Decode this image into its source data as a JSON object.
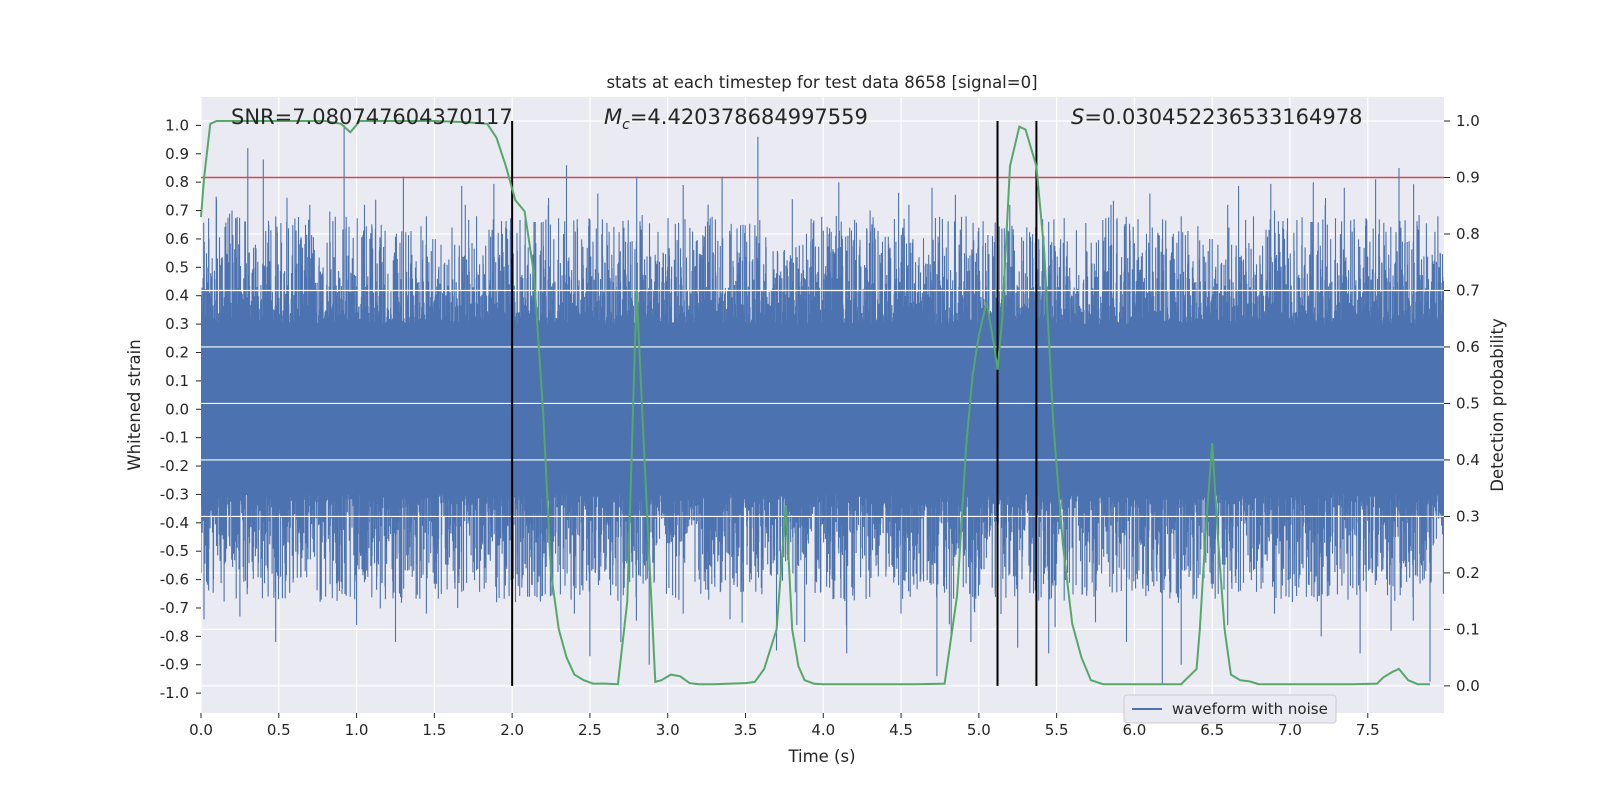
{
  "chart_data": {
    "type": "line",
    "title": "stats at each timestep for test data 8658 [signal=0]",
    "xlabel": "Time (s)",
    "ylabel": "Whitened strain",
    "y2label": "Detection probability",
    "xlim": [
      0.0,
      7.99
    ],
    "ylim": [
      -1.07,
      1.1
    ],
    "y2lim": [
      -0.048,
      1.0425
    ],
    "xticks": [
      "0.0",
      "0.5",
      "1.0",
      "1.5",
      "2.0",
      "2.5",
      "3.0",
      "3.5",
      "4.0",
      "4.5",
      "5.0",
      "5.5",
      "6.0",
      "6.5",
      "7.0",
      "7.5"
    ],
    "yticks": [
      "-1.0",
      "-0.9",
      "-0.8",
      "-0.7",
      "-0.6",
      "-0.5",
      "-0.4",
      "-0.3",
      "-0.2",
      "-0.1",
      "0.0",
      "0.1",
      "0.2",
      "0.3",
      "0.4",
      "0.5",
      "0.6",
      "0.7",
      "0.8",
      "0.9",
      "1.0"
    ],
    "y2ticks": [
      "0.0",
      "0.1",
      "0.2",
      "0.3",
      "0.4",
      "0.5",
      "0.6",
      "0.7",
      "0.8",
      "0.9",
      "1.0"
    ],
    "annotations": {
      "snr": "SNR=7.080747604370117",
      "mc_symbol": "M",
      "mc_sub": "c",
      "mc_value": "=4.420378684997559",
      "s_symbol": "S",
      "s_value": "=0.030452236533164978"
    },
    "threshold": {
      "value": 0.9,
      "axis": "right",
      "color": "#c44e52"
    },
    "vertical_lines": [
      2.0,
      5.12,
      5.37
    ],
    "waveform": {
      "name": "waveform with noise",
      "color": "#4c72b0",
      "sample_rate_hz": 2048,
      "duration_s": 7.99,
      "noise_envelope": {
        "typical_max": 0.45,
        "typical_min": -0.45,
        "max": 1.0,
        "min": -0.97
      },
      "max_spikes": [
        [
          0.05,
          0.6
        ],
        [
          0.1,
          0.74
        ],
        [
          0.2,
          0.7
        ],
        [
          0.3,
          0.92
        ],
        [
          0.4,
          0.88
        ],
        [
          0.55,
          0.66
        ],
        [
          0.7,
          0.72
        ],
        [
          0.92,
          1.0
        ],
        [
          1.05,
          0.72
        ],
        [
          1.3,
          0.82
        ],
        [
          1.45,
          0.68
        ],
        [
          1.7,
          0.72
        ],
        [
          2.2,
          0.66
        ],
        [
          2.35,
          0.86
        ],
        [
          2.55,
          0.76
        ],
        [
          2.8,
          0.82
        ],
        [
          3.1,
          0.79
        ],
        [
          3.35,
          0.82
        ],
        [
          3.58,
          0.96
        ],
        [
          3.8,
          0.74
        ],
        [
          4.1,
          0.8
        ],
        [
          4.3,
          0.7
        ],
        [
          4.55,
          0.72
        ],
        [
          4.7,
          0.78
        ],
        [
          5.0,
          0.64
        ],
        [
          5.2,
          0.72
        ],
        [
          5.45,
          0.66
        ],
        [
          5.85,
          0.72
        ],
        [
          6.1,
          0.76
        ],
        [
          6.3,
          0.68
        ],
        [
          6.6,
          0.72
        ],
        [
          6.9,
          0.7
        ],
        [
          7.15,
          0.8
        ],
        [
          7.35,
          0.78
        ],
        [
          7.55,
          0.81
        ],
        [
          7.7,
          0.85
        ],
        [
          7.95,
          0.68
        ]
      ],
      "min_spikes": [
        [
          0.02,
          -0.74
        ],
        [
          0.25,
          -0.73
        ],
        [
          0.48,
          -0.82
        ],
        [
          0.8,
          -0.66
        ],
        [
          1.0,
          -0.76
        ],
        [
          1.25,
          -0.82
        ],
        [
          1.45,
          -0.72
        ],
        [
          1.65,
          -0.7
        ],
        [
          1.9,
          -0.68
        ],
        [
          2.1,
          -0.66
        ],
        [
          2.4,
          -0.72
        ],
        [
          2.5,
          -0.87
        ],
        [
          2.7,
          -0.82
        ],
        [
          2.88,
          -0.9
        ],
        [
          3.1,
          -0.72
        ],
        [
          3.4,
          -0.74
        ],
        [
          3.7,
          -0.85
        ],
        [
          3.88,
          -0.82
        ],
        [
          4.15,
          -0.86
        ],
        [
          4.5,
          -0.72
        ],
        [
          4.73,
          -0.94
        ],
        [
          4.95,
          -0.82
        ],
        [
          5.25,
          -0.84
        ],
        [
          5.45,
          -0.86
        ],
        [
          5.75,
          -0.75
        ],
        [
          5.95,
          -0.82
        ],
        [
          6.18,
          -0.97
        ],
        [
          6.3,
          -0.9
        ],
        [
          6.6,
          -0.76
        ],
        [
          6.9,
          -0.72
        ],
        [
          7.2,
          -0.8
        ],
        [
          7.45,
          -0.86
        ],
        [
          7.65,
          -0.78
        ],
        [
          7.9,
          -0.96
        ]
      ]
    },
    "detection_probability": {
      "color": "#55a868",
      "x": [
        0.0,
        0.02,
        0.06,
        0.1,
        0.2,
        0.4,
        0.6,
        0.8,
        0.9,
        0.96,
        1.02,
        1.1,
        1.3,
        1.5,
        1.7,
        1.84,
        1.9,
        1.96,
        2.02,
        2.08,
        2.14,
        2.2,
        2.25,
        2.3,
        2.35,
        2.4,
        2.46,
        2.52,
        2.6,
        2.68,
        2.74,
        2.8,
        2.86,
        2.92,
        2.96,
        3.02,
        3.08,
        3.14,
        3.2,
        3.3,
        3.4,
        3.5,
        3.56,
        3.62,
        3.7,
        3.76,
        3.8,
        3.84,
        3.88,
        3.94,
        4.0,
        4.1,
        4.2,
        4.3,
        4.4,
        4.6,
        4.78,
        4.86,
        4.92,
        4.96,
        5.0,
        5.05,
        5.1,
        5.12,
        5.15,
        5.2,
        5.26,
        5.3,
        5.37,
        5.42,
        5.48,
        5.54,
        5.6,
        5.66,
        5.72,
        5.8,
        6.0,
        6.3,
        6.4,
        6.42,
        6.46,
        6.5,
        6.54,
        6.58,
        6.62,
        6.68,
        6.74,
        6.8,
        6.9,
        7.0,
        7.2,
        7.4,
        7.56,
        7.6,
        7.66,
        7.7,
        7.76,
        7.82,
        7.9
      ],
      "y": [
        0.83,
        0.9,
        0.995,
        1.0,
        1.0,
        1.0,
        1.0,
        1.0,
        0.995,
        0.98,
        1.0,
        1.0,
        1.0,
        1.0,
        0.998,
        0.995,
        0.97,
        0.92,
        0.86,
        0.84,
        0.73,
        0.48,
        0.2,
        0.1,
        0.05,
        0.02,
        0.01,
        0.004,
        0.004,
        0.003,
        0.15,
        0.7,
        0.35,
        0.007,
        0.01,
        0.02,
        0.017,
        0.005,
        0.003,
        0.003,
        0.004,
        0.005,
        0.007,
        0.03,
        0.1,
        0.32,
        0.1,
        0.035,
        0.01,
        0.004,
        0.003,
        0.003,
        0.003,
        0.003,
        0.003,
        0.003,
        0.004,
        0.16,
        0.43,
        0.55,
        0.62,
        0.68,
        0.6,
        0.56,
        0.65,
        0.92,
        0.99,
        0.985,
        0.92,
        0.77,
        0.46,
        0.25,
        0.11,
        0.05,
        0.01,
        0.003,
        0.003,
        0.003,
        0.03,
        0.1,
        0.28,
        0.43,
        0.25,
        0.1,
        0.02,
        0.01,
        0.008,
        0.003,
        0.003,
        0.003,
        0.003,
        0.003,
        0.004,
        0.015,
        0.025,
        0.03,
        0.01,
        0.003,
        0.003
      ]
    },
    "legend": {
      "placement": "lower-right",
      "label": "waveform with noise"
    }
  }
}
